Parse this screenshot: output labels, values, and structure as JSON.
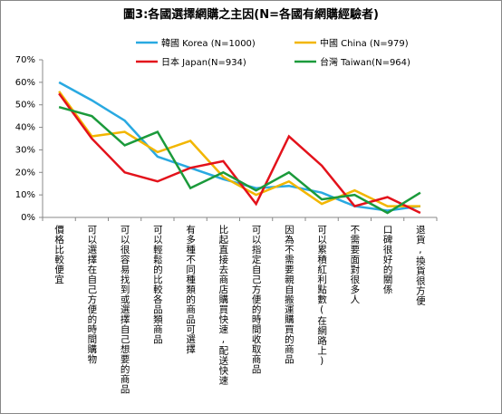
{
  "chart_data": {
    "type": "line",
    "title": "圖3:各國選擇網購之主因(N=各國有網購經驗者)",
    "categories": [
      "價格比較便宜",
      "可以選擇在自己方便的時間購物",
      "可以很容易找到或選擇自己想要的商品",
      "可以輕鬆的比較各品類商品",
      "有多種不同種類的商品可選擇",
      "比起直接去商店購買快速,配送快速",
      "可以指定自己方便的時間收取商品",
      "因為不需要親自搬運購買的商品",
      "可以累積紅利點數(在網路上)",
      "不需要面對很多人",
      "口碑很好的關係",
      "退貨,換貨很方便"
    ],
    "series": [
      {
        "name": "韓國 Korea (N=1000)",
        "color": "#29a9e1",
        "values": [
          60,
          52,
          43,
          27,
          22,
          17,
          13,
          14,
          11,
          5,
          3,
          5
        ]
      },
      {
        "name": "中國 China (N=979)",
        "color": "#f2b600",
        "values": [
          56,
          36,
          38,
          29,
          34,
          18,
          10,
          16,
          6,
          12,
          5,
          5
        ]
      },
      {
        "name": "日本 Japan(N=934)",
        "color": "#e3121b",
        "values": [
          55,
          35,
          20,
          16,
          22,
          25,
          6,
          36,
          23,
          5,
          9,
          2
        ]
      },
      {
        "name": "台灣 Taiwan(N=964)",
        "color": "#1b9a3b",
        "values": [
          49,
          45,
          32,
          38,
          13,
          20,
          12,
          20,
          8,
          10,
          2,
          11
        ]
      }
    ],
    "ylim": [
      0,
      70
    ],
    "yticks": [
      {
        "value": 0,
        "label": "0%"
      },
      {
        "value": 10,
        "label": "10%"
      },
      {
        "value": 20,
        "label": "20%"
      },
      {
        "value": 30,
        "label": "30%"
      },
      {
        "value": 40,
        "label": "40%"
      },
      {
        "value": 50,
        "label": "50%"
      },
      {
        "value": 60,
        "label": "60%"
      },
      {
        "value": 70,
        "label": "70%"
      }
    ]
  }
}
